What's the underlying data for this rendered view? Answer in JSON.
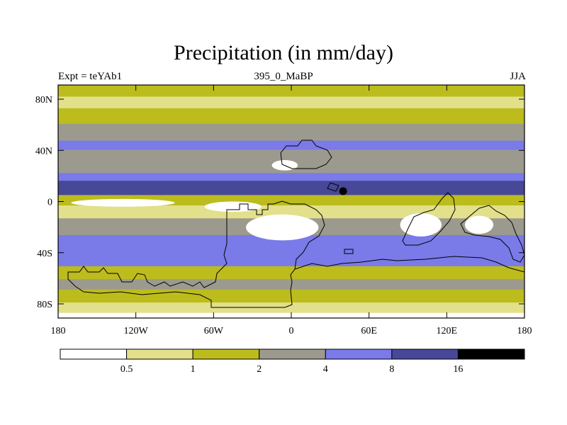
{
  "chart_data": {
    "type": "heatmap",
    "title": "Precipitation (in mm/day)",
    "subtitle_left": "Expt = teYAb1",
    "subtitle_center": "395_0_MaBP",
    "subtitle_right": "JJA",
    "x_ticks": [
      "180",
      "120W",
      "60W",
      "0",
      "60E",
      "120E",
      "180"
    ],
    "y_ticks": [
      "80N",
      "40N",
      "0",
      "40S",
      "80S"
    ],
    "xlim": [
      -180,
      180
    ],
    "ylim": [
      -90,
      90
    ],
    "levels": [
      "0.5",
      "1",
      "2",
      "4",
      "8",
      "16"
    ],
    "colorbar_colors": [
      "#ffffff",
      "#e2e08a",
      "#bcbc1c",
      "#9c9a8e",
      "#7a7ae8",
      "#484898",
      "#000000"
    ],
    "bands": [
      {
        "lat_top": 90,
        "lat_bottom": 81,
        "level": 2
      },
      {
        "lat_top": 81,
        "lat_bottom": 72,
        "level": 1
      },
      {
        "lat_top": 72,
        "lat_bottom": 60,
        "level": 2
      },
      {
        "lat_top": 60,
        "lat_bottom": 47,
        "level": 3
      },
      {
        "lat_top": 47,
        "lat_bottom": 40,
        "level": 4
      },
      {
        "lat_top": 40,
        "lat_bottom": 22,
        "level": 3
      },
      {
        "lat_top": 22,
        "lat_bottom": 16,
        "level": 4
      },
      {
        "lat_top": 16,
        "lat_bottom": 5,
        "level": 5
      },
      {
        "lat_top": 5,
        "lat_bottom": -3,
        "level": 2
      },
      {
        "lat_top": -3,
        "lat_bottom": -13,
        "level": 1
      },
      {
        "lat_top": -13,
        "lat_bottom": -26,
        "level": 3
      },
      {
        "lat_top": -26,
        "lat_bottom": -40,
        "level": 4
      },
      {
        "lat_top": -40,
        "lat_bottom": -50,
        "level": 4
      },
      {
        "lat_top": -50,
        "lat_bottom": -60,
        "level": 2
      },
      {
        "lat_top": -60,
        "lat_bottom": -68,
        "level": 3
      },
      {
        "lat_top": -68,
        "lat_bottom": -78,
        "level": 2
      },
      {
        "lat_top": -78,
        "lat_bottom": -86,
        "level": 1
      },
      {
        "lat_top": -86,
        "lat_bottom": -90,
        "level": 0
      }
    ],
    "blobs": [
      {
        "name": "tropical-south-america-dry",
        "lon": -7,
        "lat": -20,
        "rlon": 28,
        "rlat": 10,
        "level": 0
      },
      {
        "name": "equatorial-pacific-dry",
        "lon": -130,
        "lat": -1,
        "rlon": 40,
        "rlat": 3,
        "level": 0
      },
      {
        "name": "east-pacific-dry",
        "lon": -45,
        "lat": -4,
        "rlon": 22,
        "rlat": 4,
        "level": 0
      },
      {
        "name": "indian-ocean-dry",
        "lon": 100,
        "lat": -18,
        "rlon": 16,
        "rlat": 9,
        "level": 0
      },
      {
        "name": "east-continent-dry",
        "lon": 145,
        "lat": -18,
        "rlon": 11,
        "rlat": 7,
        "level": 0
      },
      {
        "name": "northern-dry-patch",
        "lon": -5,
        "lat": 28,
        "rlon": 10,
        "rlat": 4,
        "level": 0
      },
      {
        "name": "southern-ocean-wet",
        "lon": 55,
        "lat": -33,
        "rlon": 60,
        "rlat": 6,
        "level": 4
      },
      {
        "name": "northern-wet-core",
        "lon": 40,
        "lat": 8,
        "rlon": 3,
        "rlat": 3,
        "level": 6
      }
    ]
  }
}
